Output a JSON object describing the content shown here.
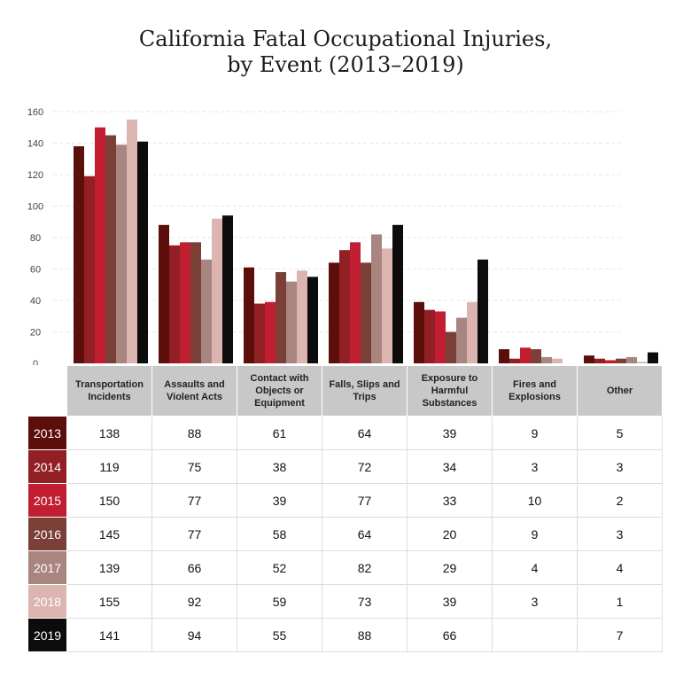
{
  "title_lines": [
    "California Fatal Occupational Injuries,",
    "by Event (2013–2019)"
  ],
  "header_labels": [
    [
      "Transportation",
      "Incidents"
    ],
    [
      "Assaults and",
      "Violent Acts"
    ],
    [
      "Contact with",
      "Objects or",
      "Equipment"
    ],
    [
      "Falls, Slips and",
      "Trips"
    ],
    [
      "Exposure to",
      "Harmful",
      "Substances"
    ],
    [
      "Fires and",
      "Explosions"
    ],
    [
      "Other"
    ]
  ],
  "chart_data": {
    "type": "bar",
    "title": "California Fatal Occupational Injuries, by Event (2013–2019)",
    "categories": [
      "Transportation Incidents",
      "Assaults and Violent Acts",
      "Contact with Objects or Equipment",
      "Falls, Slips and Trips",
      "Exposure to Harmful Substances",
      "Fires and Explosions",
      "Other"
    ],
    "ylim": [
      0,
      160
    ],
    "yticks": [
      0,
      20,
      40,
      60,
      80,
      100,
      120,
      140,
      160
    ],
    "grid": true,
    "series": [
      {
        "name": "2013",
        "color": "#5c0f0a",
        "values": [
          138,
          88,
          61,
          64,
          39,
          9,
          5
        ]
      },
      {
        "name": "2014",
        "color": "#921f24",
        "values": [
          119,
          75,
          38,
          72,
          34,
          3,
          3
        ]
      },
      {
        "name": "2015",
        "color": "#c11e32",
        "values": [
          150,
          77,
          39,
          77,
          33,
          10,
          2
        ]
      },
      {
        "name": "2016",
        "color": "#7a3f37",
        "values": [
          145,
          77,
          58,
          64,
          20,
          9,
          3
        ]
      },
      {
        "name": "2017",
        "color": "#a98580",
        "values": [
          139,
          66,
          52,
          82,
          29,
          4,
          4
        ]
      },
      {
        "name": "2018",
        "color": "#dcb5b0",
        "values": [
          155,
          92,
          59,
          73,
          39,
          3,
          1
        ]
      },
      {
        "name": "2019",
        "color": "#0c0c0c",
        "values": [
          141,
          94,
          55,
          88,
          66,
          null,
          7
        ]
      }
    ]
  }
}
